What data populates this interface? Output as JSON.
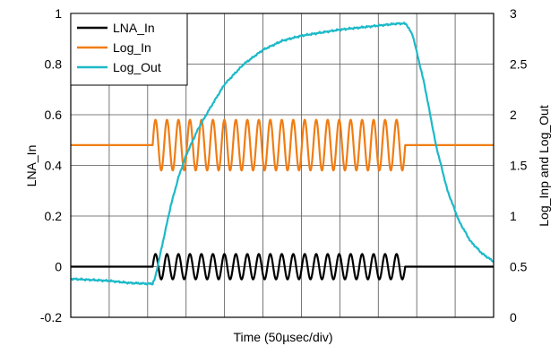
{
  "chart_data": {
    "type": "line",
    "title": "",
    "xlabel": "Time (50µsec/div)",
    "ylabel_left": "LNA_In",
    "ylabel_right": "Log_Inp and Log_Out",
    "x_unit": "division (50µsec/div)",
    "xlim": [
      0,
      11
    ],
    "ylim_left": [
      -0.2,
      1.0
    ],
    "ylim_right": [
      0,
      3
    ],
    "yticks_left": [
      "1",
      "0.8",
      "0.6",
      "0.4",
      "0.2",
      "0",
      "-0.2"
    ],
    "yticks_right": [
      "3",
      "2.5",
      "2",
      "1.5",
      "1",
      "0.5",
      "0"
    ],
    "grid": true,
    "legend_position": "top-left",
    "series": [
      {
        "name": "LNA_In",
        "axis": "left",
        "color": "#000000",
        "baseline": 0.0,
        "burst_start": 2.13,
        "burst_end": 8.7,
        "amplitude": 0.05,
        "cycles": 22
      },
      {
        "name": "Log_In",
        "axis": "left",
        "color": "#f07d14",
        "baseline": 0.48,
        "burst_start": 2.13,
        "burst_end": 8.7,
        "peak_max": 0.58,
        "trough_min": 0.38,
        "cycles": 22
      },
      {
        "name": "Log_Out",
        "axis": "right",
        "color": "#1cb9c8",
        "points": [
          [
            0,
            0.38
          ],
          [
            0.5,
            0.37
          ],
          [
            1.0,
            0.36
          ],
          [
            1.5,
            0.34
          ],
          [
            2.13,
            0.33
          ],
          [
            2.2,
            0.4
          ],
          [
            2.4,
            0.75
          ],
          [
            2.6,
            1.1
          ],
          [
            2.8,
            1.38
          ],
          [
            3.0,
            1.6
          ],
          [
            3.3,
            1.85
          ],
          [
            3.6,
            2.05
          ],
          [
            4.0,
            2.3
          ],
          [
            4.5,
            2.5
          ],
          [
            5.0,
            2.64
          ],
          [
            5.5,
            2.73
          ],
          [
            6.0,
            2.78
          ],
          [
            6.5,
            2.81
          ],
          [
            7.0,
            2.84
          ],
          [
            7.5,
            2.86
          ],
          [
            8.0,
            2.88
          ],
          [
            8.5,
            2.9
          ],
          [
            8.72,
            2.9
          ],
          [
            8.9,
            2.78
          ],
          [
            9.2,
            2.3
          ],
          [
            9.5,
            1.7
          ],
          [
            9.8,
            1.25
          ],
          [
            10.1,
            0.95
          ],
          [
            10.4,
            0.75
          ],
          [
            10.7,
            0.63
          ],
          [
            11.0,
            0.55
          ]
        ]
      }
    ]
  }
}
